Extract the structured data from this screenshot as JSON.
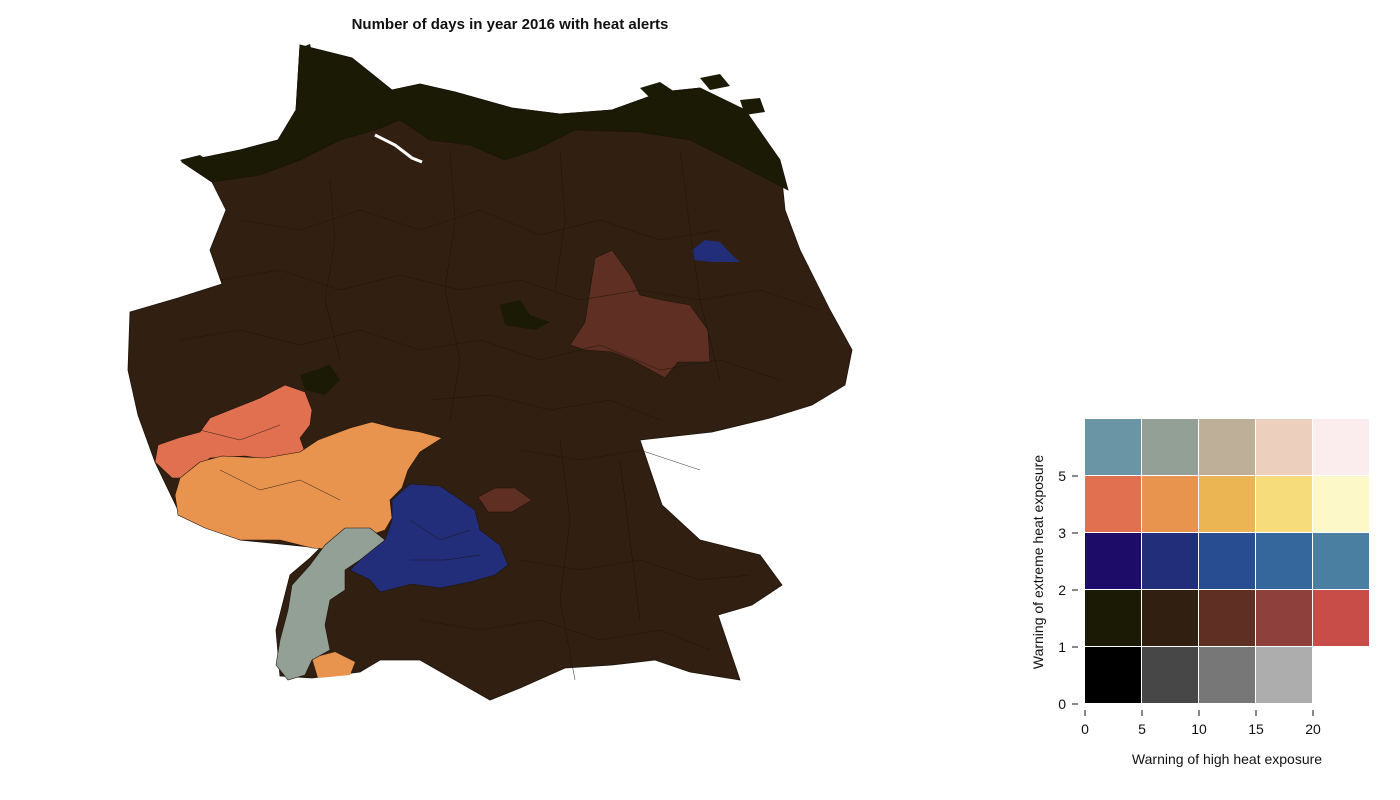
{
  "title": "Number of days in year 2016 with heat alerts",
  "colors": {
    "sea_north": "#1a1a05",
    "base": "#312011",
    "dark_red_brown": "#5e2f22",
    "salmon": "#e07050",
    "orange": "#e8944f",
    "blue": "#232e7b",
    "gray_green": "#93a096",
    "state_border": "#1d130a"
  },
  "legend": {
    "xlabel": "Warning of high heat exposure",
    "ylabel": "Warning of extreme heat exposure",
    "x_ticks": [
      "0",
      "5",
      "10",
      "15",
      "20"
    ],
    "y_ticks": [
      "0",
      "1",
      "2",
      "3",
      "5"
    ],
    "grid_rows": [
      [
        "#6a95a4",
        "#93a096",
        "#beb098",
        "#ecd0bd",
        "#fbecee"
      ],
      [
        "#e07050",
        "#e8944f",
        "#ecb553",
        "#f6dc7b",
        "#fdf8c8"
      ],
      [
        "#1d0d68",
        "#232e7b",
        "#294d91",
        "#35669c",
        "#4b7fa2"
      ],
      [
        "#1a1a05",
        "#312011",
        "#5e2f22",
        "#8e403d",
        "#c84d49"
      ],
      [
        "#000000",
        "#474747",
        "#777777",
        "#adadad",
        ""
      ]
    ]
  }
}
